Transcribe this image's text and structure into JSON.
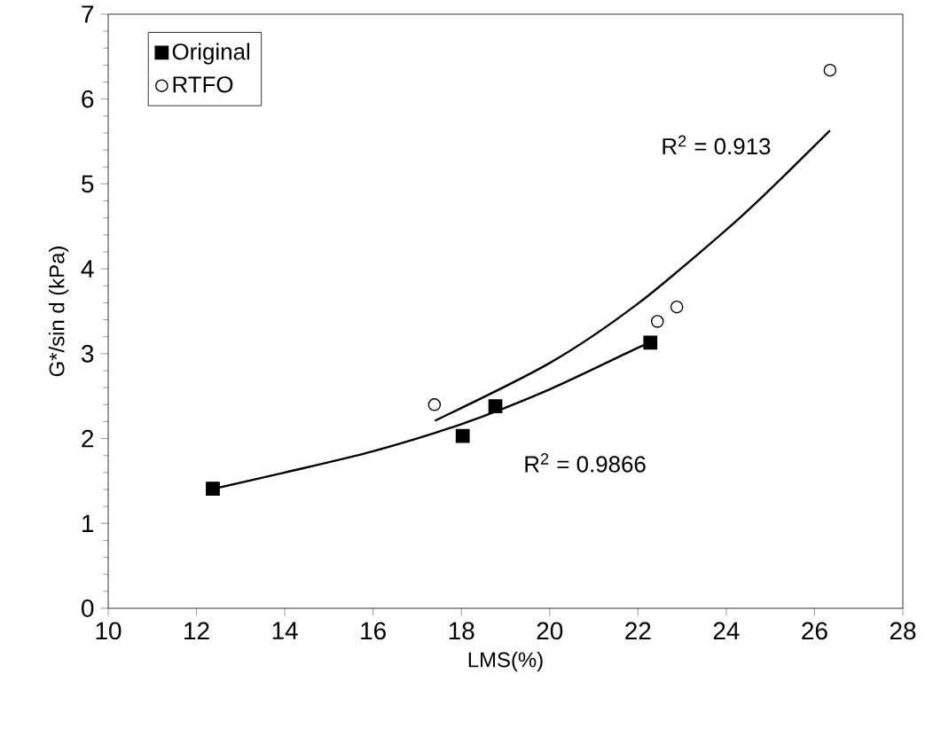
{
  "chart_data": {
    "type": "scatter",
    "xlabel": "LMS(%)",
    "ylabel": "G*/sin d (kPa)",
    "xlim": [
      10,
      28
    ],
    "xticks": [
      10,
      12,
      14,
      16,
      18,
      20,
      22,
      24,
      26,
      28
    ],
    "ylim": [
      0,
      7
    ],
    "yticks": [
      0,
      1,
      2,
      3,
      4,
      5,
      6,
      7
    ],
    "legend": "top left",
    "grid": false,
    "series": [
      {
        "name": "Original",
        "marker": "square",
        "color": "#000000",
        "x": [
          12.37,
          18.03,
          18.77,
          22.28
        ],
        "values": [
          1.41,
          2.03,
          2.38,
          3.13
        ]
      },
      {
        "name": "RTFO",
        "marker": "circle",
        "color": "#000000",
        "x": [
          17.39,
          22.44,
          22.88,
          26.35
        ],
        "values": [
          2.4,
          3.38,
          3.55,
          6.34
        ]
      },
      {
        "type": "line",
        "color": "#000000",
        "x": [
          12.4,
          14,
          16,
          18,
          20,
          22,
          22.3
        ],
        "values": [
          1.41,
          1.6,
          1.85,
          2.17,
          2.58,
          3.07,
          3.13
        ]
      },
      {
        "type": "line",
        "color": "#000000",
        "x": [
          17.4,
          20,
          22,
          24,
          25,
          26.35
        ],
        "values": [
          2.21,
          2.89,
          3.59,
          4.46,
          4.94,
          5.63
        ]
      }
    ],
    "annotations": [
      "R$^{2}$ = 0.913",
      "R$^{2}$ = 0.9866"
    ]
  }
}
